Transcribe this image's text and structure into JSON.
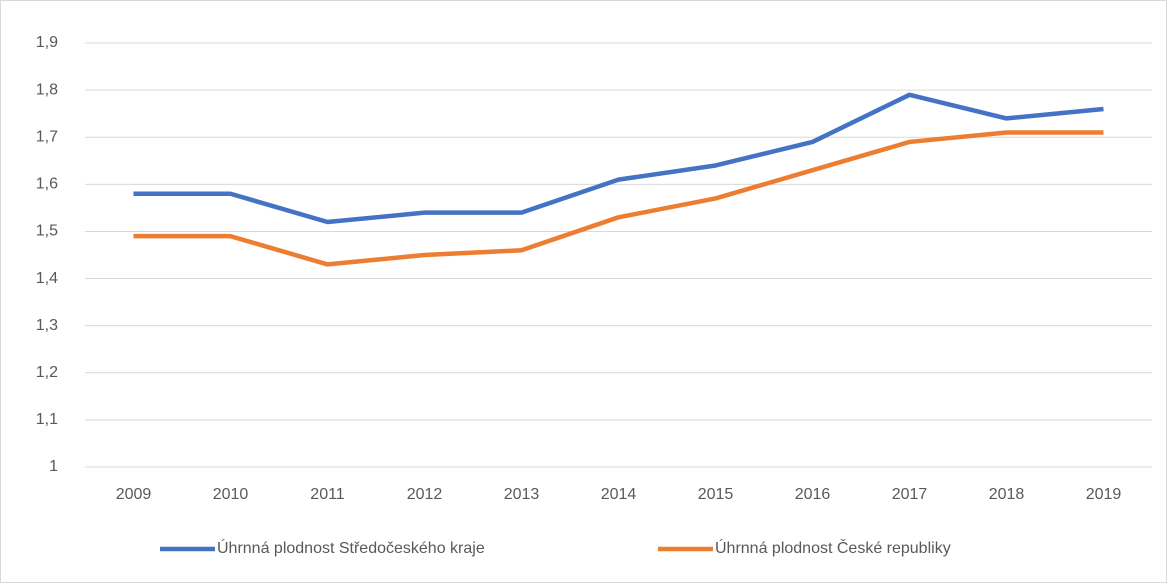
{
  "chart_data": {
    "type": "line",
    "categories": [
      "2009",
      "2010",
      "2011",
      "2012",
      "2013",
      "2014",
      "2015",
      "2016",
      "2017",
      "2018",
      "2019"
    ],
    "series": [
      {
        "name": "Úhrnná plodnost Středočeského kraje",
        "color": "#4472c4",
        "values": [
          1.58,
          1.58,
          1.52,
          1.54,
          1.54,
          1.61,
          1.64,
          1.69,
          1.79,
          1.74,
          1.76
        ]
      },
      {
        "name": "Úhrnná plodnost České republiky",
        "color": "#ed7d31",
        "values": [
          1.49,
          1.49,
          1.43,
          1.45,
          1.46,
          1.53,
          1.57,
          1.63,
          1.69,
          1.71,
          1.71
        ]
      }
    ],
    "ylim": [
      1,
      1.9
    ],
    "yticks": [
      1,
      {
        "value": 1.1,
        "label": "1,1"
      },
      {
        "value": 1.2,
        "label": "1,2"
      },
      {
        "value": 1.3,
        "label": "1,3"
      },
      {
        "value": 1.4,
        "label": "1,4"
      },
      {
        "value": 1.5,
        "label": "1,5"
      },
      {
        "value": 1.6,
        "label": "1,6"
      },
      {
        "value": 1.7,
        "label": "1,7"
      },
      {
        "value": 1.8,
        "label": "1,8"
      },
      {
        "value": 1.9,
        "label": "1,9"
      }
    ],
    "grid": true,
    "legend": "bottom"
  }
}
